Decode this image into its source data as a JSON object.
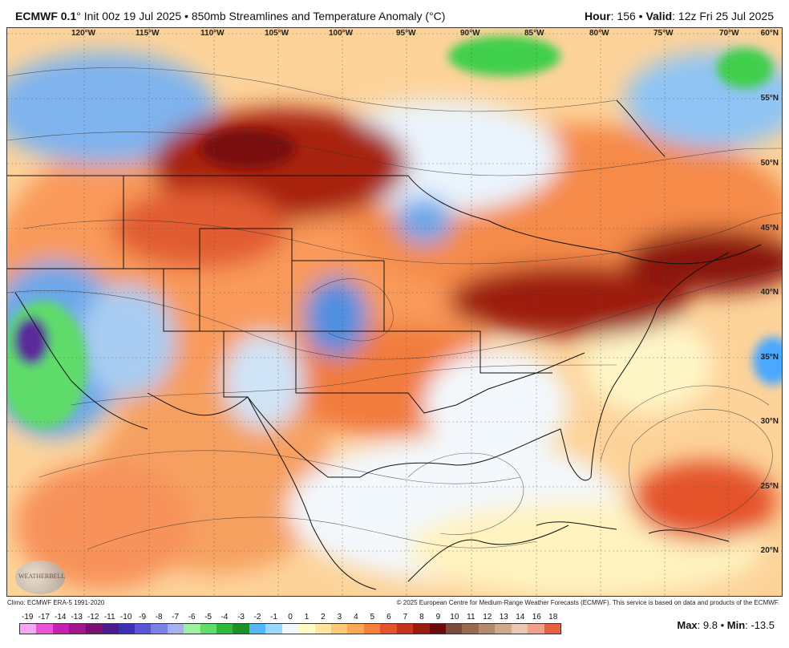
{
  "header": {
    "model": "ECMWF 0.1",
    "run": "° Init 00z 19 Jul 2025 • 850mb Streamlines and Temperature Anomaly (°C)",
    "hour_label": "Hour",
    "hour_value": ": 156 • ",
    "valid_label": "Valid",
    "valid_value": ": 12z Fri 25 Jul 2025"
  },
  "map": {
    "longitudes": [
      "120°W",
      "115°W",
      "110°W",
      "105°W",
      "100°W",
      "95°W",
      "90°W",
      "85°W",
      "80°W",
      "75°W",
      "70°W"
    ],
    "latitudes": [
      "60°N",
      "55°N",
      "50°N",
      "45°N",
      "40°N",
      "35°N",
      "30°N",
      "25°N",
      "20°N"
    ],
    "logo_text": "WEATHERBELL"
  },
  "footer": {
    "climo": "Climo: ECMWF ERA-5 1991-2020",
    "copyright": "© 2025 European Centre for Medium-Range Weather Forecasts (ECMWF). This service is based on data and products of the ECMWF."
  },
  "colorbar": {
    "labels": [
      "-19",
      "-17",
      "-14",
      "-13",
      "-12",
      "-11",
      "-10",
      "-9",
      "-8",
      "-7",
      "-6",
      "-5",
      "-4",
      "-3",
      "-2",
      "-1",
      "0",
      "1",
      "2",
      "3",
      "4",
      "5",
      "6",
      "7",
      "8",
      "9",
      "10",
      "11",
      "12",
      "13",
      "14",
      "16",
      "18"
    ],
    "colors": [
      "#f7a6f0",
      "#ea55d8",
      "#c71fb3",
      "#a0148f",
      "#7b1073",
      "#4d1a8f",
      "#3b2fb4",
      "#5a55d6",
      "#7d80e8",
      "#a8b0f2",
      "#9cf0a0",
      "#5fdc6a",
      "#2ebb3c",
      "#1f8f2a",
      "#55b6ff",
      "#9ad6ff",
      "#f3f8fd",
      "#fffac8",
      "#fde79a",
      "#fdc877",
      "#fca658",
      "#f77e3d",
      "#e4532a",
      "#c8331c",
      "#9d1a0f",
      "#6e0a0a",
      "#7a4a3a",
      "#9a6a55",
      "#b58a72",
      "#cfa98f",
      "#e8c7b0",
      "#f0a08a",
      "#e7603f"
    ]
  },
  "stats": {
    "max_label": "Max",
    "max_value": ": 9.8 • ",
    "min_label": "Min",
    "min_value": ": -13.5"
  }
}
